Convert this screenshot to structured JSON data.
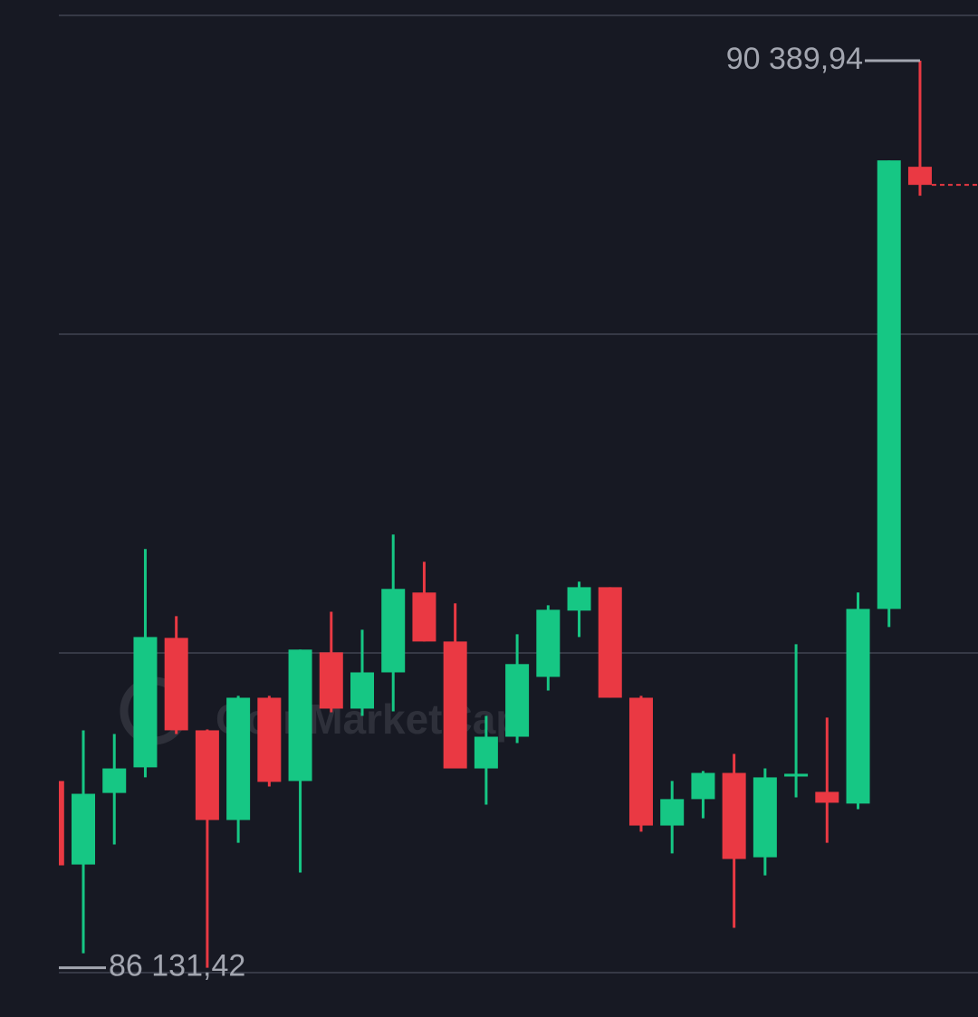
{
  "chart_data": {
    "type": "candlestick",
    "watermark": "CoinMarketCap",
    "max_label": "90 389,94",
    "min_label": "86 131,42",
    "up_color": "#16c784",
    "down_color": "#ea3943",
    "ylim": [
      85900,
      90675
    ],
    "open": [
      87008,
      86616,
      86952,
      87072,
      87680,
      87246,
      86825,
      87399,
      87008,
      87612,
      87348,
      87518,
      87893,
      87663,
      87067,
      87216,
      87497,
      87808,
      87918,
      87399,
      86799,
      86923,
      87046,
      86650,
      87029,
      86957,
      86902,
      87816,
      89892
    ],
    "high": [
      87008,
      87246,
      87229,
      88097,
      87782,
      87250,
      87408,
      87408,
      87625,
      87803,
      87718,
      88165,
      88037,
      87842,
      87314,
      87697,
      87833,
      87944,
      87918,
      87408,
      87008,
      87055,
      87135,
      87067,
      87650,
      87306,
      87893,
      89922,
      90389.94
    ],
    "low": [
      86612,
      86199,
      86710,
      87025,
      87229,
      86131.42,
      86718,
      86982,
      86578,
      87331,
      87314,
      87335,
      87663,
      87067,
      86897,
      87186,
      87433,
      87684,
      87399,
      86770,
      86668,
      86833,
      86319,
      86565,
      86931,
      86718,
      86876,
      87731,
      89756
    ],
    "close": [
      86612,
      86948,
      87067,
      87684,
      87246,
      86825,
      87399,
      87004,
      87625,
      87348,
      87518,
      87910,
      87663,
      87067,
      87216,
      87557,
      87812,
      87918,
      87399,
      86799,
      86923,
      87046,
      86642,
      87025,
      87042,
      86906,
      87816,
      89922,
      89807
    ]
  }
}
